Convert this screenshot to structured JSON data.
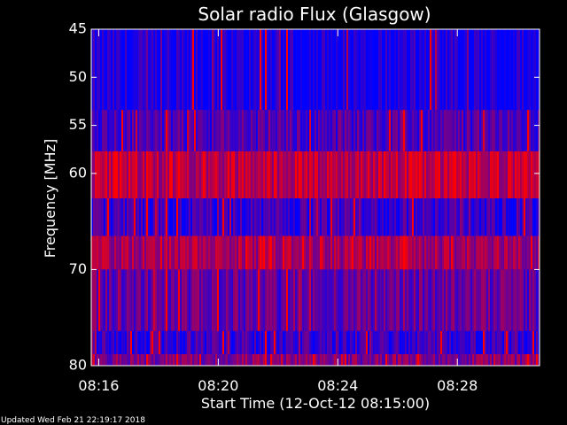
{
  "chart_data": {
    "type": "heatmap",
    "title": "Solar radio Flux (Glasgow)",
    "xlabel": "Start Time (12-Oct-12 08:15:00)",
    "ylabel": "Frequency [MHz]",
    "x_range_minutes": [
      15.75,
      30.75
    ],
    "xtick_minutes": [
      16,
      20,
      24,
      28
    ],
    "xtick_labels": [
      "08:16",
      "08:20",
      "08:24",
      "08:28"
    ],
    "ylim": [
      45,
      80
    ],
    "y_inverted": true,
    "ytick_values": [
      45,
      50,
      55,
      60,
      70,
      80
    ],
    "ytick_labels": [
      "45",
      "50",
      "55",
      "60",
      "70",
      "80"
    ],
    "frequency_bands": [
      {
        "from": 45.0,
        "to": 53.4,
        "level": 0.06
      },
      {
        "from": 53.4,
        "to": 57.7,
        "level": 0.3
      },
      {
        "from": 57.7,
        "to": 62.6,
        "level": 0.72
      },
      {
        "from": 62.6,
        "to": 66.5,
        "level": 0.2
      },
      {
        "from": 66.5,
        "to": 70.0,
        "level": 0.62
      },
      {
        "from": 70.0,
        "to": 76.4,
        "level": 0.38
      },
      {
        "from": 76.4,
        "to": 78.8,
        "level": 0.22
      },
      {
        "from": 78.8,
        "to": 80.0,
        "level": 0.5
      }
    ],
    "colormap": [
      "#0000ff",
      "#ff0000"
    ]
  },
  "footer": {
    "updated": "Updated Wed Feb 21 22:19:17 2018"
  }
}
